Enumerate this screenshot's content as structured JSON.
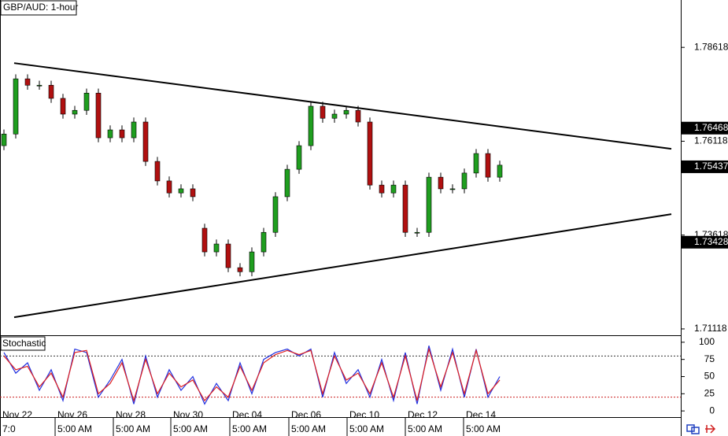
{
  "chart_data": [
    {
      "type": "candlestick",
      "title": "GBP/AUD: 1-hour",
      "x": [
        0,
        5,
        10,
        15,
        20,
        25,
        30,
        35,
        40,
        45,
        50,
        55,
        60,
        65,
        70,
        75,
        80,
        85,
        90,
        95,
        100,
        105,
        110,
        115,
        120,
        125,
        130,
        135,
        140,
        145,
        150,
        155,
        160,
        165,
        170,
        175,
        180,
        185,
        190,
        195,
        200,
        205,
        210
      ],
      "open": [
        1.76,
        1.7631,
        1.7778,
        1.7761,
        1.7761,
        1.7726,
        1.7684,
        1.7694,
        1.774,
        1.7621,
        1.7642,
        1.7621,
        1.7663,
        1.7558,
        1.7506,
        1.7474,
        1.7485,
        1.738,
        1.7317,
        1.7338,
        1.7275,
        1.7264,
        1.7317,
        1.7369,
        1.7464,
        1.7537,
        1.76,
        1.7705,
        1.7673,
        1.7684,
        1.7694,
        1.7663,
        1.7495,
        1.7474,
        1.7495,
        1.7369,
        1.7369,
        1.7516,
        1.7485,
        1.7485,
        1.7527,
        1.7579,
        1.7516
      ],
      "high": [
        1.7643,
        1.779,
        1.779,
        1.7773,
        1.7773,
        1.7738,
        1.7706,
        1.7752,
        1.7752,
        1.7654,
        1.7654,
        1.7675,
        1.7675,
        1.757,
        1.7518,
        1.7497,
        1.7497,
        1.7392,
        1.735,
        1.735,
        1.7287,
        1.7329,
        1.7381,
        1.7476,
        1.7549,
        1.7612,
        1.7717,
        1.7717,
        1.7696,
        1.7706,
        1.7706,
        1.7675,
        1.7507,
        1.7507,
        1.7507,
        1.7381,
        1.7528,
        1.7528,
        1.7497,
        1.7539,
        1.7591,
        1.7591,
        1.756
      ],
      "low": [
        1.7588,
        1.7619,
        1.7749,
        1.7749,
        1.7714,
        1.7672,
        1.7672,
        1.7682,
        1.7609,
        1.7609,
        1.7609,
        1.7609,
        1.7546,
        1.7494,
        1.7462,
        1.7462,
        1.7452,
        1.7305,
        1.7305,
        1.7263,
        1.7252,
        1.7252,
        1.7305,
        1.7357,
        1.7452,
        1.7525,
        1.7588,
        1.7661,
        1.7661,
        1.7672,
        1.7651,
        1.7483,
        1.7462,
        1.7462,
        1.7357,
        1.7357,
        1.7357,
        1.7473,
        1.7473,
        1.7473,
        1.7515,
        1.7504,
        1.7504
      ],
      "close": [
        1.7631,
        1.7778,
        1.7761,
        1.7761,
        1.7726,
        1.7684,
        1.7694,
        1.774,
        1.7621,
        1.7642,
        1.7621,
        1.7663,
        1.7558,
        1.7506,
        1.7474,
        1.7485,
        1.7464,
        1.7317,
        1.7338,
        1.7275,
        1.7264,
        1.7317,
        1.7369,
        1.7464,
        1.7537,
        1.76,
        1.7705,
        1.7673,
        1.7684,
        1.7694,
        1.7663,
        1.7495,
        1.7474,
        1.7495,
        1.7369,
        1.7369,
        1.7516,
        1.7485,
        1.7485,
        1.7527,
        1.7579,
        1.7516,
        1.7548
      ],
      "up_color": "#1f9e1f",
      "down_color": "#b01010",
      "xlim": [
        -1.67,
        286.67
      ],
      "ylim": [
        1.7097,
        1.7988
      ],
      "yticks": [
        1.78618,
        1.76118,
        1.73618,
        1.71118
      ],
      "price_markers": [
        1.76468,
        1.75437,
        1.73428
      ],
      "trendlines": [
        {
          "x": [
            4.33,
            282.67
          ],
          "y": [
            1.78199,
            1.75914
          ]
        },
        {
          "x": [
            4.33,
            282.67
          ],
          "y": [
            1.71429,
            1.74175
          ]
        }
      ],
      "xticks": [
        {
          "value": -1.67,
          "label": "Nov 22"
        },
        {
          "value": 21.67,
          "label": "Nov 26"
        },
        {
          "value": 46.33,
          "label": "Nov 28"
        },
        {
          "value": 70.67,
          "label": "Nov 30"
        },
        {
          "value": 95.67,
          "label": "Dec 04"
        },
        {
          "value": 120.67,
          "label": "Dec 06"
        },
        {
          "value": 145.33,
          "label": "Dec 10"
        },
        {
          "value": 170,
          "label": "Dec 12"
        },
        {
          "value": 194.67,
          "label": "Dec 14"
        }
      ],
      "xtick_times": [
        "7:0",
        "5:00 AM",
        "5:00 AM",
        "5:00 AM",
        "5:00 AM",
        "5:00 AM",
        "5:00 AM",
        "5:00 AM",
        "5:00 AM"
      ]
    },
    {
      "type": "line",
      "title": "Stochastic",
      "x": [
        0,
        5,
        10,
        15,
        20,
        25,
        30,
        35,
        40,
        45,
        50,
        55,
        60,
        65,
        70,
        75,
        80,
        85,
        90,
        95,
        100,
        105,
        110,
        115,
        120,
        125,
        130,
        135,
        140,
        145,
        150,
        155,
        160,
        165,
        170,
        175,
        180,
        185,
        190,
        195,
        200,
        205,
        210
      ],
      "series": [
        {
          "color": "#2030e0",
          "values": [
            85,
            55,
            70,
            30,
            60,
            15,
            90,
            85,
            20,
            45,
            75,
            10,
            80,
            20,
            60,
            30,
            50,
            10,
            40,
            15,
            70,
            25,
            75,
            85,
            90,
            80,
            90,
            20,
            85,
            40,
            60,
            20,
            75,
            15,
            85,
            10,
            95,
            30,
            90,
            20,
            90,
            20,
            50
          ]
        },
        {
          "color": "#e02020",
          "values": [
            80,
            60,
            65,
            35,
            55,
            20,
            85,
            88,
            25,
            40,
            70,
            15,
            75,
            25,
            55,
            35,
            45,
            15,
            35,
            20,
            65,
            30,
            70,
            82,
            88,
            82,
            88,
            25,
            80,
            45,
            55,
            25,
            70,
            20,
            80,
            15,
            90,
            35,
            85,
            25,
            88,
            25,
            45
          ]
        }
      ],
      "xlim": [
        -1.67,
        286.67
      ],
      "ylim": [
        -9,
        109
      ],
      "yticks": [
        100,
        75,
        50,
        25,
        0
      ],
      "levels": [
        {
          "value": 80,
          "color": "#333333"
        },
        {
          "value": 20,
          "color": "#cc2020"
        }
      ]
    }
  ]
}
